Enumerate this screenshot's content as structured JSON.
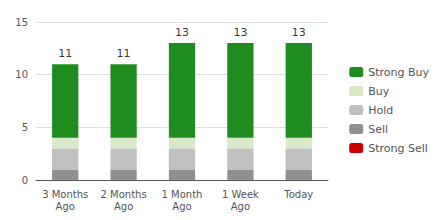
{
  "chart_data": {
    "type": "bar",
    "categories": [
      "3 Months\nAgo",
      "2 Months\nAgo",
      "1 Month\nAgo",
      "1 Week\nAgo",
      "Today"
    ],
    "series": [
      {
        "name": "Strong Sell",
        "color": "#cc0000",
        "values": [
          0,
          0,
          0,
          0,
          0
        ]
      },
      {
        "name": "Sell",
        "color": "#909090",
        "values": [
          1,
          1,
          1,
          1,
          1
        ]
      },
      {
        "name": "Hold",
        "color": "#c0c0c0",
        "values": [
          2,
          2,
          2,
          2,
          2
        ]
      },
      {
        "name": "Buy",
        "color": "#d8e8c8",
        "values": [
          1,
          1,
          1,
          1,
          1
        ]
      },
      {
        "name": "Strong Buy",
        "color": "#1e8c1e",
        "values": [
          7,
          7,
          9,
          9,
          9
        ]
      }
    ],
    "totals": [
      11,
      11,
      13,
      13,
      13
    ],
    "stacked": true,
    "ylim": [
      0,
      15
    ],
    "yticks": [
      0,
      5,
      10,
      15
    ],
    "grid": true,
    "legend": "right"
  }
}
